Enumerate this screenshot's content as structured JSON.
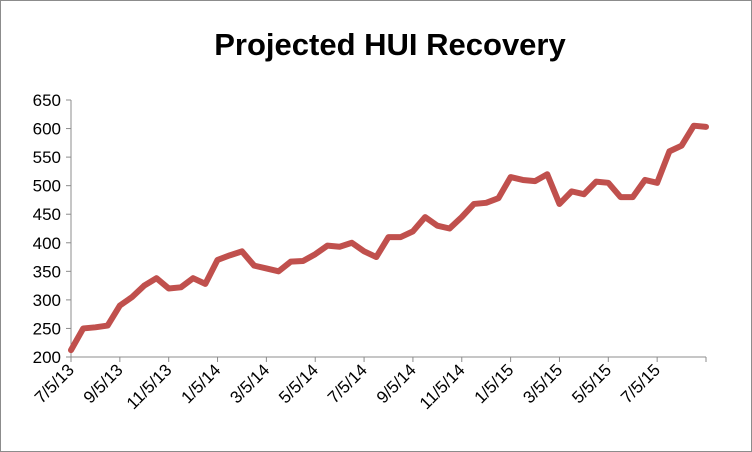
{
  "chart_data": {
    "type": "line",
    "title": "Projected HUI Recovery",
    "categories": [
      "7/5/13",
      null,
      null,
      null,
      "9/5/13",
      null,
      null,
      null,
      "11/5/13",
      null,
      null,
      null,
      "1/5/14",
      null,
      null,
      null,
      "3/5/14",
      null,
      null,
      null,
      "5/5/14",
      null,
      null,
      null,
      "7/5/14",
      null,
      null,
      null,
      "9/5/14",
      null,
      null,
      null,
      "11/5/14",
      null,
      null,
      null,
      "1/5/15",
      null,
      null,
      null,
      "3/5/15",
      null,
      null,
      null,
      "5/5/15",
      null,
      null,
      null,
      "7/5/15",
      null,
      null,
      null,
      null
    ],
    "series": [
      {
        "name": "HUI",
        "color": "#c0504d",
        "values": [
          212,
          250,
          252,
          255,
          290,
          305,
          325,
          338,
          320,
          322,
          338,
          328,
          370,
          378,
          385,
          360,
          355,
          350,
          367,
          368,
          380,
          395,
          393,
          400,
          385,
          375,
          410,
          410,
          420,
          445,
          430,
          425,
          445,
          468,
          470,
          478,
          515,
          510,
          508,
          520,
          468,
          490,
          485,
          507,
          505,
          480,
          480,
          510,
          505,
          560,
          570,
          605,
          603
        ]
      }
    ],
    "ylim": [
      200,
      650
    ],
    "yticks": [
      200,
      250,
      300,
      350,
      400,
      450,
      500,
      550,
      600,
      650
    ],
    "legend": false
  }
}
